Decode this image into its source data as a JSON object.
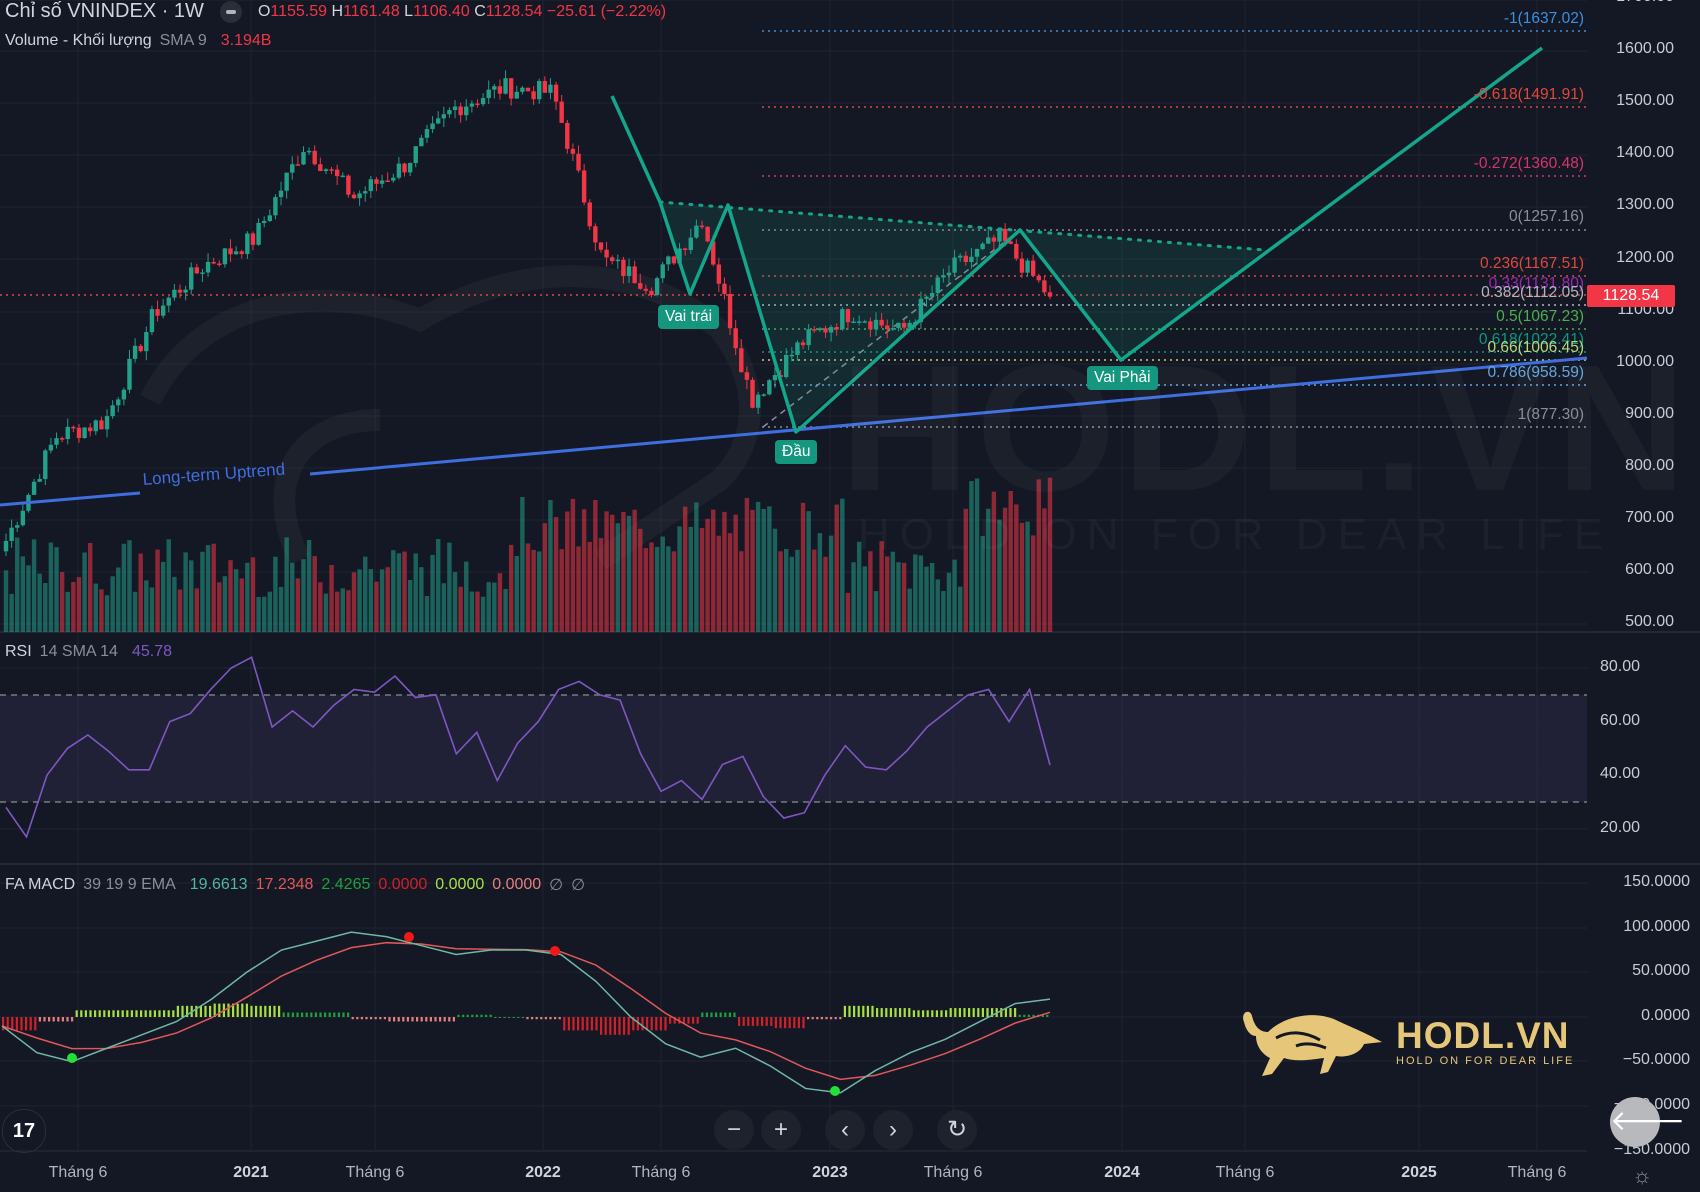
{
  "header": {
    "symbol_title": "Chỉ số VNINDEX · 1W",
    "ohlc": {
      "o_label": "O",
      "o_value": "1155.59",
      "h_label": "H",
      "h_value": "1161.48",
      "l_label": "L",
      "l_value": "1106.40",
      "c_label": "C",
      "c_value": "1128.54",
      "change": "−25.61 (−2.22%)"
    },
    "volume_legend": {
      "name": "Volume - Khối lượng",
      "params": "SMA 9",
      "value": "3.194B"
    }
  },
  "rsi_legend": {
    "name": "RSI",
    "params": "14 SMA 14",
    "value": "45.78"
  },
  "macd_legend": {
    "name": "FA MACD",
    "params": "39 19 9 EMA",
    "values": [
      "19.6613",
      "17.2348",
      "2.4265",
      "0.0000",
      "0.0000",
      "0.0000"
    ],
    "value_colors": [
      "#4fb7a0",
      "#e0585a",
      "#1ea03a",
      "#d0202a",
      "#a7e040",
      "#e77f7f"
    ],
    "icons": [
      "∅",
      "∅"
    ]
  },
  "price_axis": [
    "1700.00",
    "1600.00",
    "1500.00",
    "1400.00",
    "1300.00",
    "1200.00",
    "1100.00",
    "1000.00",
    "900.00",
    "800.00",
    "700.00",
    "600.00",
    "500.00"
  ],
  "last_price_tag": "1128.54",
  "rsi_axis": [
    "80.00",
    "60.00",
    "40.00",
    "20.00"
  ],
  "macd_axis": [
    "150.0000",
    "100.0000",
    "50.0000",
    "0.0000",
    "−50.0000",
    "−100.0000",
    "−150.0000"
  ],
  "time_axis": [
    {
      "label": "Tháng 6",
      "year": false
    },
    {
      "label": "2021",
      "year": true
    },
    {
      "label": "Tháng 6",
      "year": false
    },
    {
      "label": "2022",
      "year": true
    },
    {
      "label": "Tháng 6",
      "year": false
    },
    {
      "label": "2023",
      "year": true
    },
    {
      "label": "Tháng 6",
      "year": false
    },
    {
      "label": "2024",
      "year": true
    },
    {
      "label": "Tháng 6",
      "year": false
    },
    {
      "label": "2025",
      "year": true
    },
    {
      "label": "Tháng 6",
      "year": false
    }
  ],
  "fib_levels": [
    {
      "label": "-1(1637.02)",
      "color": "#3d8fe0"
    },
    {
      "label": "-0.618(1491.91)",
      "color": "#e0483c"
    },
    {
      "label": "-0.272(1360.48)",
      "color": "#d6336c"
    },
    {
      "label": "0(1257.16)",
      "color": "#8a8e99"
    },
    {
      "label": "0.236(1167.51)",
      "color": "#e0483c"
    },
    {
      "label": "0.33(1131.80)",
      "color": "#9c27b0"
    },
    {
      "label": "0.382(1112.05)",
      "color": "#b2b5be"
    },
    {
      "label": "0.5(1067.23)",
      "color": "#4caf50"
    },
    {
      "label": "0.618(1022.41)",
      "color": "#089981"
    },
    {
      "label": "0.66(1006.45)",
      "color": "#b8d87a"
    },
    {
      "label": "0.786(958.59)",
      "color": "#64a6e0"
    },
    {
      "label": "1(877.30)",
      "color": "#8a8e99"
    }
  ],
  "pattern_labels": {
    "left_shoulder": "Vai trái",
    "head": "Đầu",
    "right_shoulder": "Vai Phải"
  },
  "trendline_label": "Long-term Uptrend",
  "watermark": {
    "big": "HODL.VN",
    "small": "HOLD ON FOR DEAR LIFE"
  },
  "logo": {
    "name": "HODL.VN",
    "tagline": "HOLD ON FOR DEAR LIFE"
  },
  "controls": {
    "zoom_out": "−",
    "zoom_in": "+",
    "prev": "‹",
    "next": "›",
    "reset": "↻",
    "back": "🡐",
    "settings": "☼",
    "tv_logo": "17"
  },
  "colors": {
    "up": "#22a08a",
    "down": "#f23645",
    "pattern": "#14a68a",
    "trendline": "#3f6ee0",
    "rsi": "#7e57c2",
    "macd": "#6fb8a5",
    "signal": "#e0585a"
  },
  "chart_data": [
    {
      "type": "candlestick",
      "title": "Chỉ số VNINDEX · 1W",
      "ylim": [
        500,
        1700
      ],
      "x_ticks": [
        "Tháng 6",
        "2021",
        "Tháng 6",
        "2022",
        "Tháng 6",
        "2023",
        "Tháng 6",
        "2024",
        "Tháng 6",
        "2025",
        "Tháng 6"
      ],
      "last": {
        "open": 1155.59,
        "high": 1161.48,
        "low": 1106.4,
        "close": 1128.54,
        "change": -25.61,
        "change_pct": -2.22
      },
      "approx_path": [
        {
          "date": "2020-04",
          "close": 660
        },
        {
          "date": "2020-06",
          "close": 860
        },
        {
          "date": "2020-09",
          "close": 890
        },
        {
          "date": "2020-12",
          "close": 1100
        },
        {
          "date": "2021-01",
          "close": 1190
        },
        {
          "date": "2021-04",
          "close": 1240
        },
        {
          "date": "2021-07",
          "close": 1420
        },
        {
          "date": "2021-08",
          "close": 1320
        },
        {
          "date": "2021-10",
          "close": 1380
        },
        {
          "date": "2021-11",
          "close": 1490
        },
        {
          "date": "2022-01",
          "close": 1530
        },
        {
          "date": "2022-04",
          "close": 1520
        },
        {
          "date": "2022-06",
          "close": 1200
        },
        {
          "date": "2022-07",
          "close": 1150
        },
        {
          "date": "2022-08",
          "close": 1280
        },
        {
          "date": "2022-11",
          "close": 930
        },
        {
          "date": "2022-12",
          "close": 1040
        },
        {
          "date": "2023-02",
          "close": 1100
        },
        {
          "date": "2023-05",
          "close": 1060
        },
        {
          "date": "2023-07",
          "close": 1180
        },
        {
          "date": "2023-09",
          "close": 1240
        },
        {
          "date": "2023-10",
          "close": 1128.54
        }
      ],
      "volume_sma9": "3.194B",
      "fibonacci": [
        {
          "ratio": -1,
          "price": 1637.02
        },
        {
          "ratio": -0.618,
          "price": 1491.91
        },
        {
          "ratio": -0.272,
          "price": 1360.48
        },
        {
          "ratio": 0,
          "price": 1257.16
        },
        {
          "ratio": 0.236,
          "price": 1167.51
        },
        {
          "ratio": 0.33,
          "price": 1131.8
        },
        {
          "ratio": 0.382,
          "price": 1112.05
        },
        {
          "ratio": 0.5,
          "price": 1067.23
        },
        {
          "ratio": 0.618,
          "price": 1022.41
        },
        {
          "ratio": 0.66,
          "price": 1006.45
        },
        {
          "ratio": 0.786,
          "price": 958.59
        },
        {
          "ratio": 1,
          "price": 877.3
        }
      ],
      "annotations": [
        {
          "text": "Vai trái",
          "type": "left shoulder",
          "price": 1130
        },
        {
          "text": "Đầu",
          "type": "head",
          "price": 880
        },
        {
          "text": "Vai Phải",
          "type": "right shoulder (projected)",
          "price": 1010
        },
        {
          "text": "Long-term Uptrend",
          "type": "trendline",
          "from_price": 720,
          "to_price": 1010
        },
        {
          "text": "neckline",
          "type": "dotted",
          "from_price": 1310,
          "to_price": 1220
        },
        {
          "text": "projection target",
          "price": 1610
        }
      ]
    },
    {
      "type": "line",
      "title": "RSI 14 SMA 14",
      "ylim": [
        10,
        90
      ],
      "bands": [
        30,
        70
      ],
      "last_value": 45.78,
      "approx_values": [
        30,
        17,
        38,
        52,
        55,
        47,
        44,
        42,
        58,
        65,
        72,
        78,
        86,
        58,
        62,
        60,
        66,
        70,
        73,
        77,
        67,
        72,
        48,
        54,
        40,
        52,
        58,
        74,
        75,
        68,
        70,
        48,
        32,
        40,
        31,
        42,
        49,
        32,
        22,
        28,
        40,
        49,
        45,
        42,
        47,
        60,
        64,
        68,
        74,
        60,
        70,
        45.78
      ]
    },
    {
      "type": "line",
      "title": "FA MACD 39 19 9 EMA",
      "ylim": [
        -150,
        150
      ],
      "series": [
        {
          "name": "MACD",
          "last": 19.6613
        },
        {
          "name": "Signal",
          "last": 17.2348
        },
        {
          "name": "Histogram",
          "last": 2.4265
        }
      ],
      "approx_macd": [
        -10,
        -40,
        -50,
        -35,
        -20,
        -5,
        20,
        50,
        75,
        85,
        95,
        90,
        80,
        70,
        75,
        75,
        70,
        40,
        0,
        -30,
        -45,
        -35,
        -55,
        -80,
        -85,
        -60,
        -40,
        -25,
        -5,
        15,
        20
      ],
      "crossovers": [
        {
          "type": "bull",
          "value": -45
        },
        {
          "type": "bear",
          "value": 90
        },
        {
          "type": "bear",
          "value": 75
        },
        {
          "type": "bull",
          "value": -80
        }
      ]
    }
  ]
}
